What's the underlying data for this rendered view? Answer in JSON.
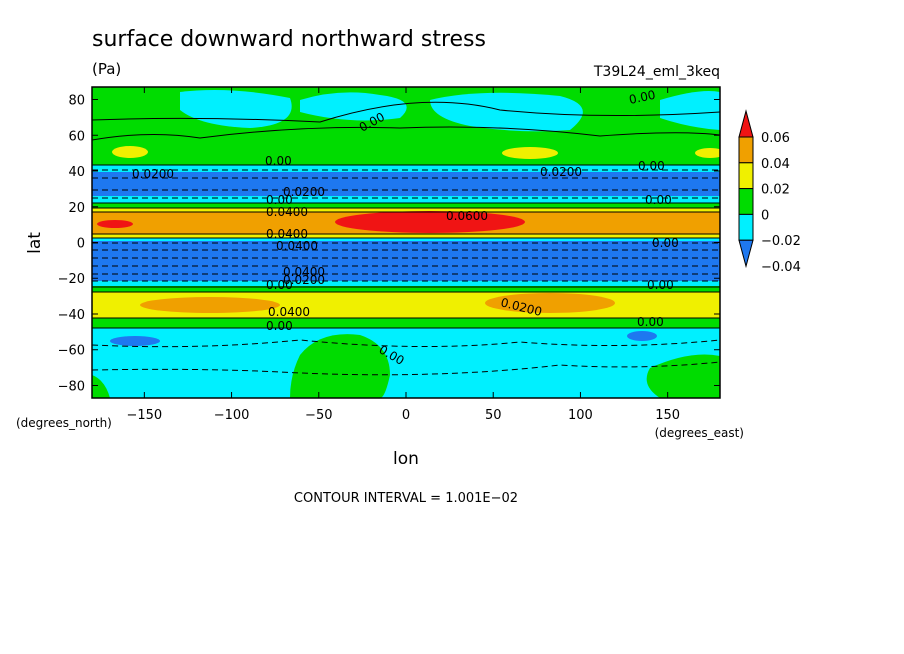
{
  "chart_data": {
    "type": "heatmap",
    "title": "surface downward northward stress",
    "units": "(Pa)",
    "run_label": "T39L24_eml_3keq",
    "xlabel": "lon",
    "ylabel": "lat",
    "x_units_label": "(degrees_east)",
    "y_units_label": "(degrees_north)",
    "xlim": [
      -180,
      180
    ],
    "ylim": [
      -87,
      87
    ],
    "x_ticks": [
      -150,
      -100,
      -50,
      0,
      50,
      100,
      150
    ],
    "y_ticks": [
      -80,
      -60,
      -40,
      -20,
      0,
      20,
      40,
      60,
      80
    ],
    "x_tick_labels": [
      "−150",
      "−100",
      "−50",
      "0",
      "50",
      "100",
      "150"
    ],
    "y_tick_labels": [
      "−80",
      "−60",
      "−40",
      "−20",
      "0",
      "20",
      "40",
      "60",
      "80"
    ],
    "contour_interval_text": "CONTOUR INTERVAL = 1.001E−02",
    "colorbar": {
      "levels": [
        -0.04,
        -0.02,
        0,
        0.02,
        0.04,
        0.06
      ],
      "tick_labels": [
        "−0.04",
        "−0.02",
        "0",
        "0.02",
        "0.04",
        "0.06"
      ],
      "colors": [
        "#1e78f0",
        "#00f0ff",
        "#00dc00",
        "#f0f000",
        "#f0a000",
        "#f01414"
      ]
    },
    "zonal_bands": [
      {
        "lat_from": 87,
        "lat_to": 47,
        "level": "0 to 0.02"
      },
      {
        "lat_from": 47,
        "lat_to": 41,
        "level": "0 to 0.02"
      },
      {
        "lat_from": 41,
        "lat_to": 26,
        "level": "-0.04 to -0.02"
      },
      {
        "lat_from": 26,
        "lat_to": 20,
        "level": "-0.02 to 0"
      },
      {
        "lat_from": 20,
        "lat_to": 16,
        "level": "0 to 0.02"
      },
      {
        "lat_from": 16,
        "lat_to": 2,
        "level": "0.02 to 0.06"
      },
      {
        "lat_from": 2,
        "lat_to": -20,
        "level": "-0.04 to -0.02"
      },
      {
        "lat_from": -20,
        "lat_to": -29,
        "level": "0 to 0.02"
      },
      {
        "lat_from": -29,
        "lat_to": -41,
        "level": "0.02 to 0.04"
      },
      {
        "lat_from": -41,
        "lat_to": -48,
        "level": "0 to 0.02"
      },
      {
        "lat_from": -48,
        "lat_to": -87,
        "level": "-0.02 to 0"
      }
    ],
    "contour_labels": [
      "0.00",
      "0.0200",
      "0.0400",
      "0.0600"
    ],
    "colors": {
      "red": "#f01414",
      "orange": "#f0a000",
      "yellow": "#f0f000",
      "green": "#00dc00",
      "cyan": "#00f0ff",
      "blue": "#1e78f0"
    }
  }
}
